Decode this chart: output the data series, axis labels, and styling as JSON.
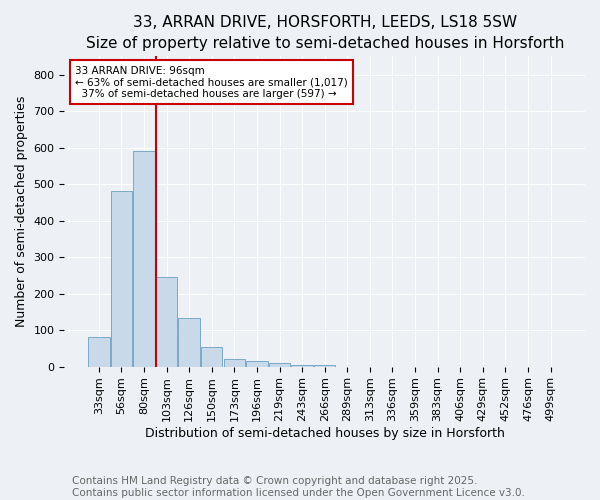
{
  "title1": "33, ARRAN DRIVE, HORSFORTH, LEEDS, LS18 5SW",
  "title2": "Size of property relative to semi-detached houses in Horsforth",
  "xlabel": "Distribution of semi-detached houses by size in Horsforth",
  "ylabel": "Number of semi-detached properties",
  "categories": [
    "33sqm",
    "56sqm",
    "80sqm",
    "103sqm",
    "126sqm",
    "150sqm",
    "173sqm",
    "196sqm",
    "219sqm",
    "243sqm",
    "266sqm",
    "289sqm",
    "313sqm",
    "336sqm",
    "359sqm",
    "383sqm",
    "406sqm",
    "429sqm",
    "452sqm",
    "476sqm",
    "499sqm"
  ],
  "values": [
    80,
    480,
    590,
    245,
    133,
    55,
    20,
    16,
    10,
    5,
    4,
    0,
    0,
    0,
    0,
    0,
    0,
    0,
    0,
    0,
    0
  ],
  "bar_color": "#c8daea",
  "bar_edge_color": "#7aaac8",
  "red_line_x": 2.55,
  "annotation_line1": "33 ARRAN DRIVE: 96sqm",
  "annotation_line2": "← 63% of semi-detached houses are smaller (1,017)",
  "annotation_line3": "  37% of semi-detached houses are larger (597) →",
  "annotation_box_color": "#ffffff",
  "annotation_box_edge": "#cc0000",
  "ylim": [
    0,
    850
  ],
  "yticks": [
    0,
    100,
    200,
    300,
    400,
    500,
    600,
    700,
    800
  ],
  "tick_fontsize": 8,
  "axis_label_fontsize": 9,
  "footer_text": "Contains HM Land Registry data © Crown copyright and database right 2025.\nContains public sector information licensed under the Open Government Licence v3.0.",
  "footer_fontsize": 7.5,
  "background_color": "#edf1f5",
  "grid_color": "#ffffff"
}
